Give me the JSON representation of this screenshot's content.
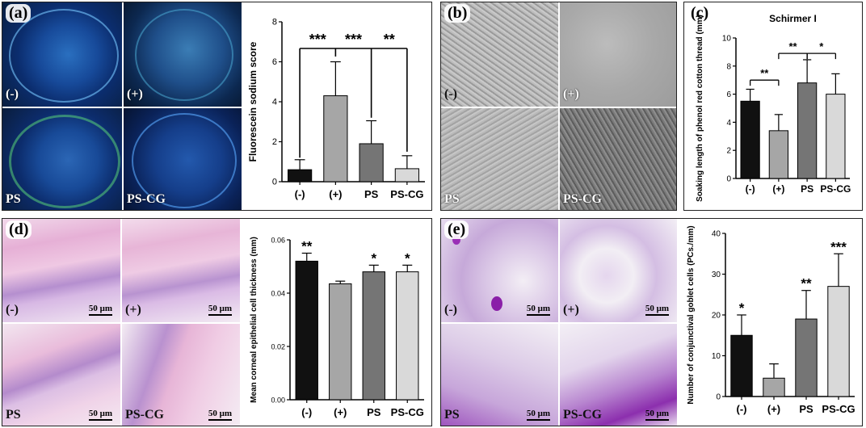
{
  "panels": {
    "a": {
      "label": "(a)",
      "tiles": [
        "(-)",
        "(+)",
        "PS",
        "PS-CG"
      ],
      "chart_data": {
        "type": "bar",
        "categories": [
          "(-)",
          "(+)",
          "PS",
          "PS-CG"
        ],
        "values": [
          0.6,
          4.3,
          1.9,
          0.65
        ],
        "errors": [
          0.5,
          1.7,
          1.15,
          0.65
        ],
        "colors": [
          "#111111",
          "#a6a6a6",
          "#757575",
          "#d9d9d9"
        ],
        "ylabel": "Fluorescein sodium score",
        "ylim": [
          0,
          8
        ],
        "yticks": [
          "0",
          "2",
          "4",
          "6",
          "8"
        ],
        "significance": [
          "***",
          "***",
          "**"
        ]
      }
    },
    "b": {
      "label": "(b)",
      "tiles": [
        "(-)",
        "(+)",
        "PS",
        "PS-CG"
      ]
    },
    "c": {
      "label": "(c)",
      "chart_data": {
        "type": "bar",
        "title": "Schirmer I",
        "categories": [
          "(-)",
          "(+)",
          "PS",
          "PS-CG"
        ],
        "values": [
          5.5,
          3.4,
          6.8,
          6.0
        ],
        "errors": [
          0.85,
          1.15,
          1.65,
          1.45
        ],
        "colors": [
          "#111111",
          "#a6a6a6",
          "#757575",
          "#d9d9d9"
        ],
        "ylabel": "Soaking length of phenol red cotton thread (mm)",
        "ylim": [
          0,
          10
        ],
        "yticks": [
          "0",
          "2",
          "4",
          "6",
          "8",
          "10"
        ],
        "significance": [
          "**",
          "**",
          "*"
        ]
      }
    },
    "d": {
      "label": "(d)",
      "tiles": [
        "(-)",
        "(+)",
        "PS",
        "PS-CG"
      ],
      "scale": "50 μm",
      "chart_data": {
        "type": "bar",
        "categories": [
          "(-)",
          "(+)",
          "PS",
          "PS-CG"
        ],
        "values": [
          0.052,
          0.0435,
          0.048,
          0.048
        ],
        "errors": [
          0.003,
          0.001,
          0.0025,
          0.0025
        ],
        "colors": [
          "#111111",
          "#a6a6a6",
          "#757575",
          "#d9d9d9"
        ],
        "ylabel": "Mean corneal epithelial cell thickness (mm)",
        "ylim": [
          0,
          0.06
        ],
        "yticks": [
          "0.00",
          "0.02",
          "0.04",
          "0.06"
        ],
        "significance": [
          "**",
          "",
          "*",
          "*"
        ]
      }
    },
    "e": {
      "label": "(e)",
      "tiles": [
        "(-)",
        "(+)",
        "PS",
        "PS-CG"
      ],
      "scale": "50 μm",
      "chart_data": {
        "type": "bar",
        "categories": [
          "(-)",
          "(+)",
          "PS",
          "PS-CG"
        ],
        "values": [
          15,
          4.5,
          19,
          27
        ],
        "errors": [
          5,
          3.5,
          7,
          8
        ],
        "colors": [
          "#111111",
          "#a6a6a6",
          "#757575",
          "#d9d9d9"
        ],
        "ylabel": "Number of conjunctival goblet cells (PCs./mm)",
        "ylim": [
          0,
          40
        ],
        "yticks": [
          "0",
          "10",
          "20",
          "30",
          "40"
        ],
        "significance": [
          "*",
          "",
          "**",
          "***"
        ]
      }
    }
  }
}
